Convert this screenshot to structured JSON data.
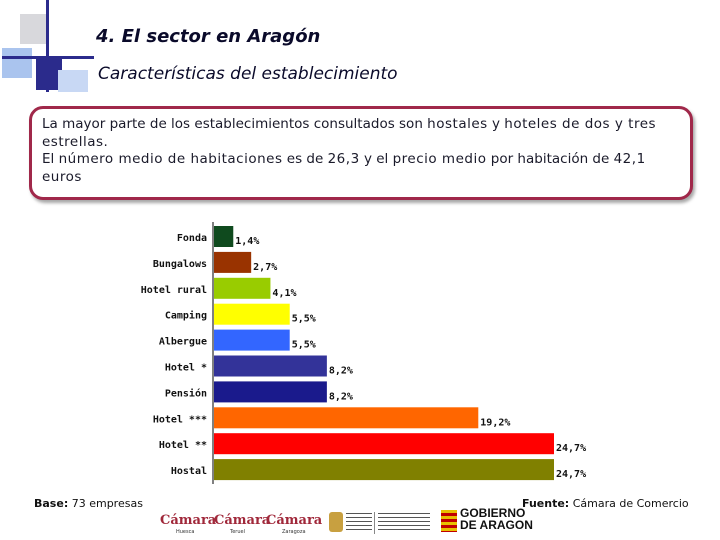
{
  "header": {
    "title": "4. El sector en Aragón",
    "subtitle": "Características del establecimiento"
  },
  "summary": {
    "line1_a": "La mayor parte de los establecimientos consultados son ",
    "line1_b": "hostales",
    "line1_c": " y ",
    "line1_d": "hoteles de dos y tres estrellas.",
    "line2_a": "El ",
    "line2_b": "número medio de habitaciones",
    "line2_c": " es de ",
    "line2_d": "26,3",
    "line2_e": " y el ",
    "line2_f": "precio medio",
    "line2_g": " por habitación de ",
    "line2_h": "42,1 euros"
  },
  "chart_data": {
    "type": "bar",
    "orientation": "horizontal",
    "categories": [
      "Fonda",
      "Bungalows",
      "Hotel rural",
      "Camping",
      "Albergue",
      "Hotel *",
      "Pensión",
      "Hotel ***",
      "Hotel **",
      "Hostal"
    ],
    "values": [
      1.4,
      2.7,
      4.1,
      5.5,
      5.5,
      8.2,
      8.2,
      19.2,
      24.7,
      24.7
    ],
    "value_labels": [
      "1,4%",
      "2,7%",
      "4,1%",
      "5,5%",
      "5,5%",
      "8,2%",
      "8,2%",
      "19,2%",
      "24,7%",
      "24,7%"
    ],
    "colors": [
      "#0f4a1e",
      "#993300",
      "#99cc00",
      "#ffff00",
      "#3366ff",
      "#333399",
      "#1a1a8c",
      "#ff6600",
      "#ff0000",
      "#808000"
    ],
    "xlim": [
      0,
      24.7
    ],
    "grid": false,
    "legend": "none"
  },
  "footer": {
    "base_label": "Base:",
    "base_value": " 73 empresas",
    "source_label": "Fuente:",
    "source_value": " Cámara de Comercio"
  },
  "logos": {
    "camara1": "Cámara",
    "camara1_sub": "Huesca",
    "camara2": "Cámara",
    "camara2_sub": "Teruel",
    "camara3": "Cámara",
    "camara3_sub": "Zaragoza",
    "gobierno_line1": "GOBIERNO",
    "gobierno_line2": "DE ARAGON"
  },
  "colors": {
    "accent": "#a0284a",
    "deco_blue": "#2b2b8c",
    "deco_light": "#9ab8e8"
  }
}
